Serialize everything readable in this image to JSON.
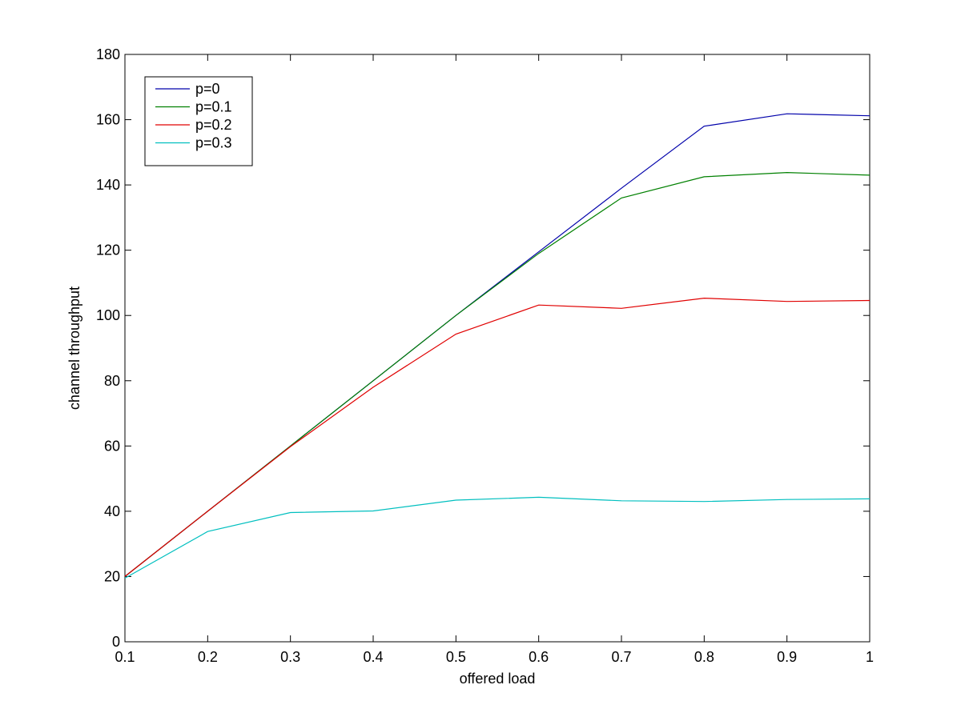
{
  "chart_data": {
    "type": "line",
    "title": "",
    "xlabel": "offered load",
    "ylabel": "channel throughput",
    "xlim": [
      0.1,
      1
    ],
    "ylim": [
      0,
      180
    ],
    "xticks": [
      0.1,
      0.2,
      0.3,
      0.4,
      0.5,
      0.6,
      0.7,
      0.8,
      0.9,
      1
    ],
    "xtick_labels": [
      "0.1",
      "0.2",
      "0.3",
      "0.4",
      "0.5",
      "0.6",
      "0.7",
      "0.8",
      "0.9",
      "1"
    ],
    "yticks": [
      0,
      20,
      40,
      60,
      80,
      100,
      120,
      140,
      160,
      180
    ],
    "ytick_labels": [
      "0",
      "20",
      "40",
      "60",
      "80",
      "100",
      "120",
      "140",
      "160",
      "180"
    ],
    "grid": false,
    "legend_position": "top-left",
    "x": [
      0.1,
      0.2,
      0.3,
      0.4,
      0.5,
      0.6,
      0.7,
      0.8,
      0.9,
      1
    ],
    "series": [
      {
        "name": "p=0",
        "color": "#0000aa",
        "values": [
          20,
          40,
          60,
          80,
          100,
          119.5,
          139,
          158,
          161.8,
          161.2
        ]
      },
      {
        "name": "p=0.1",
        "color": "#008000",
        "values": [
          20,
          40,
          60,
          80,
          100,
          119,
          136,
          142.5,
          143.8,
          143
        ]
      },
      {
        "name": "p=0.2",
        "color": "#e00000",
        "values": [
          20,
          40,
          59.8,
          78,
          94.3,
          103.2,
          102.2,
          105.3,
          104.3,
          104.6
        ]
      },
      {
        "name": "p=0.3",
        "color": "#00bfbf",
        "values": [
          19.5,
          33.8,
          39.6,
          40.1,
          43.4,
          44.3,
          43.2,
          43,
          43.6,
          43.8
        ]
      }
    ]
  }
}
